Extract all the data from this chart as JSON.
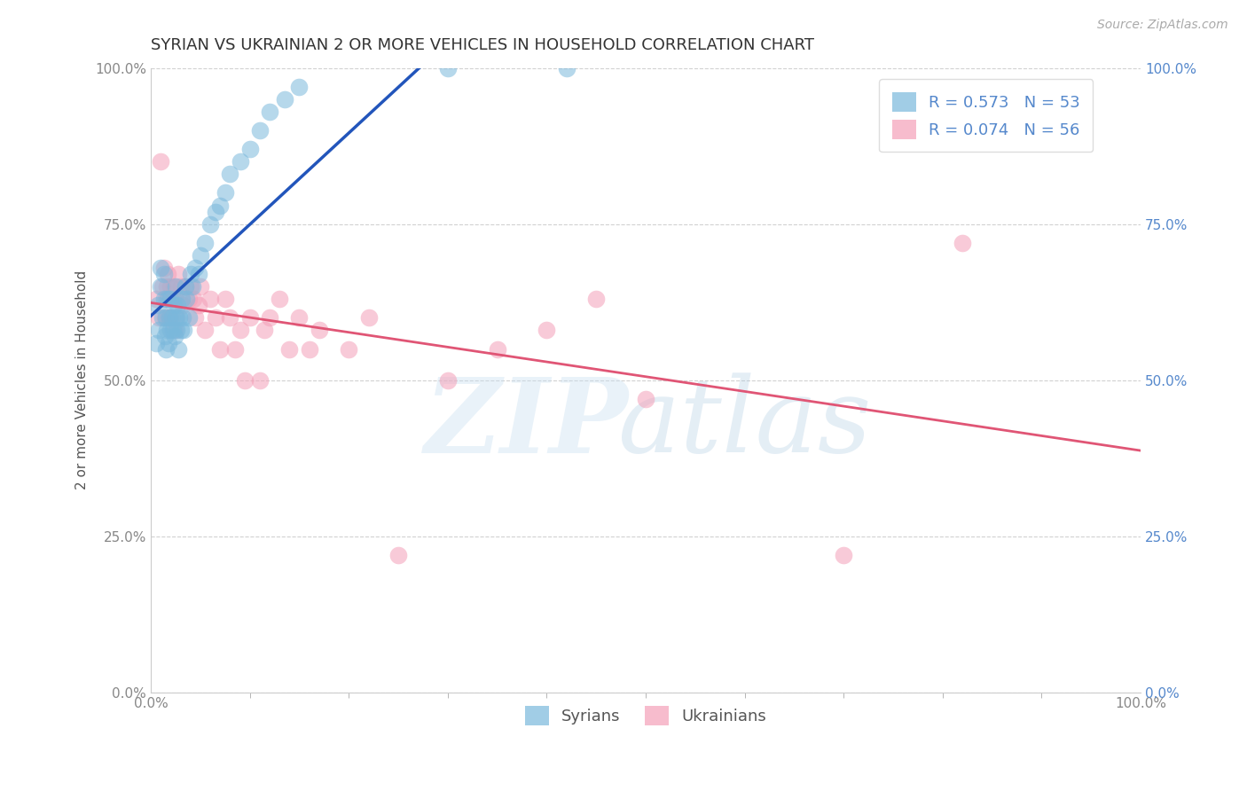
{
  "title": "SYRIAN VS UKRAINIAN 2 OR MORE VEHICLES IN HOUSEHOLD CORRELATION CHART",
  "source": "Source: ZipAtlas.com",
  "ylabel": "2 or more Vehicles in Household",
  "xlim": [
    0.0,
    1.0
  ],
  "ylim": [
    0.0,
    1.0
  ],
  "xtick_labels": [
    "0.0%",
    "100.0%"
  ],
  "ytick_labels": [
    "0.0%",
    "25.0%",
    "50.0%",
    "75.0%",
    "100.0%"
  ],
  "ytick_positions": [
    0.0,
    0.25,
    0.5,
    0.75,
    1.0
  ],
  "syrian_R": 0.573,
  "syrian_N": 53,
  "ukrainian_R": 0.074,
  "ukrainian_N": 56,
  "syrian_color": "#7ab8dc",
  "ukrainian_color": "#f4a0b8",
  "syrian_line_color": "#2255bb",
  "ukrainian_line_color": "#e05575",
  "background_color": "#ffffff",
  "grid_color": "#cccccc",
  "title_fontsize": 13,
  "axis_label_fontsize": 11,
  "tick_fontsize": 11,
  "legend_fontsize": 13,
  "source_fontsize": 10,
  "right_tick_color": "#5588cc",
  "syrian_x": [
    0.005,
    0.007,
    0.008,
    0.01,
    0.01,
    0.012,
    0.013,
    0.013,
    0.014,
    0.015,
    0.015,
    0.016,
    0.017,
    0.018,
    0.019,
    0.02,
    0.02,
    0.021,
    0.022,
    0.023,
    0.024,
    0.025,
    0.025,
    0.026,
    0.027,
    0.028,
    0.029,
    0.03,
    0.031,
    0.032,
    0.033,
    0.035,
    0.036,
    0.038,
    0.04,
    0.042,
    0.045,
    0.048,
    0.05,
    0.055,
    0.06,
    0.065,
    0.07,
    0.075,
    0.08,
    0.09,
    0.1,
    0.11,
    0.12,
    0.135,
    0.15,
    0.3,
    0.42
  ],
  "syrian_y": [
    0.56,
    0.62,
    0.58,
    0.65,
    0.68,
    0.6,
    0.63,
    0.67,
    0.57,
    0.55,
    0.6,
    0.58,
    0.63,
    0.56,
    0.6,
    0.58,
    0.63,
    0.6,
    0.58,
    0.62,
    0.57,
    0.6,
    0.65,
    0.58,
    0.62,
    0.55,
    0.6,
    0.58,
    0.63,
    0.6,
    0.58,
    0.65,
    0.63,
    0.6,
    0.67,
    0.65,
    0.68,
    0.67,
    0.7,
    0.72,
    0.75,
    0.77,
    0.78,
    0.8,
    0.83,
    0.85,
    0.87,
    0.9,
    0.93,
    0.95,
    0.97,
    1.0,
    1.0
  ],
  "ukrainian_x": [
    0.005,
    0.008,
    0.01,
    0.012,
    0.013,
    0.014,
    0.015,
    0.016,
    0.017,
    0.018,
    0.019,
    0.02,
    0.02,
    0.022,
    0.023,
    0.024,
    0.025,
    0.026,
    0.028,
    0.03,
    0.032,
    0.035,
    0.038,
    0.04,
    0.043,
    0.045,
    0.048,
    0.05,
    0.055,
    0.06,
    0.065,
    0.07,
    0.075,
    0.08,
    0.085,
    0.09,
    0.095,
    0.1,
    0.11,
    0.115,
    0.12,
    0.13,
    0.14,
    0.15,
    0.16,
    0.17,
    0.2,
    0.22,
    0.25,
    0.3,
    0.35,
    0.4,
    0.45,
    0.5,
    0.7,
    0.82
  ],
  "ukrainian_y": [
    0.63,
    0.6,
    0.85,
    0.65,
    0.68,
    0.6,
    0.63,
    0.65,
    0.67,
    0.6,
    0.63,
    0.6,
    0.65,
    0.63,
    0.65,
    0.58,
    0.63,
    0.6,
    0.67,
    0.65,
    0.62,
    0.65,
    0.63,
    0.65,
    0.63,
    0.6,
    0.62,
    0.65,
    0.58,
    0.63,
    0.6,
    0.55,
    0.63,
    0.6,
    0.55,
    0.58,
    0.5,
    0.6,
    0.5,
    0.58,
    0.6,
    0.63,
    0.55,
    0.6,
    0.55,
    0.58,
    0.55,
    0.6,
    0.22,
    0.5,
    0.55,
    0.58,
    0.63,
    0.47,
    0.22,
    0.72
  ]
}
